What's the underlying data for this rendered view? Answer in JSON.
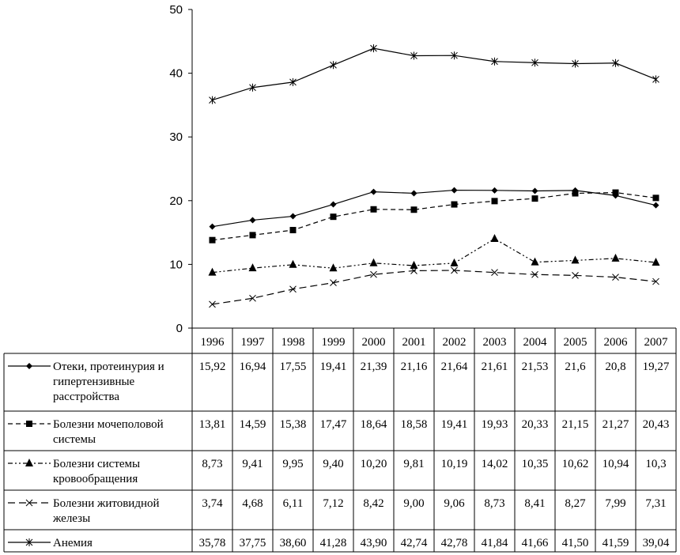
{
  "chart_data": {
    "type": "line",
    "categories": [
      "1996",
      "1997",
      "1998",
      "1999",
      "2000",
      "2001",
      "2002",
      "2003",
      "2004",
      "2005",
      "2006",
      "2007"
    ],
    "ylim": [
      0,
      50
    ],
    "yticks": [
      "0",
      "10",
      "20",
      "30",
      "40",
      "50"
    ],
    "grid": false,
    "legend": "data-table-bottom",
    "series": [
      {
        "name": "Отеки, протеинурия и гипертензивные расстройства",
        "name_lines": [
          "Отеки, протеинурия и",
          "гипертензивные",
          "расстройства"
        ],
        "marker": "diamond",
        "line_style": "solid",
        "values": [
          15.92,
          16.94,
          17.55,
          19.41,
          21.39,
          21.16,
          21.64,
          21.61,
          21.53,
          21.6,
          20.8,
          19.27
        ],
        "labels": [
          "15,92",
          "16,94",
          "17,55",
          "19,41",
          "21,39",
          "21,16",
          "21,64",
          "21,61",
          "21,53",
          "21,6",
          "20,8",
          "19,27"
        ]
      },
      {
        "name": "Болезни мочеполовой системы",
        "name_lines": [
          "Болезни мочеполовой",
          "системы"
        ],
        "marker": "square",
        "line_style": "dashed",
        "values": [
          13.81,
          14.59,
          15.38,
          17.47,
          18.64,
          18.58,
          19.41,
          19.93,
          20.33,
          21.15,
          21.27,
          20.43
        ],
        "labels": [
          "13,81",
          "14,59",
          "15,38",
          "17,47",
          "18,64",
          "18,58",
          "19,41",
          "19,93",
          "20,33",
          "21,15",
          "21,27",
          "20,43"
        ]
      },
      {
        "name": "Болезни системы кровообращения",
        "name_lines": [
          "Болезни системы",
          "кровообращения"
        ],
        "marker": "triangle",
        "line_style": "dash-dot-dot",
        "values": [
          8.73,
          9.41,
          9.95,
          9.4,
          10.2,
          9.81,
          10.19,
          14.02,
          10.35,
          10.62,
          10.94,
          10.3
        ],
        "labels": [
          "8,73",
          "9,41",
          "9,95",
          "9,40",
          "10,20",
          "9,81",
          "10,19",
          "14,02",
          "10,35",
          "10,62",
          "10,94",
          "10,3"
        ]
      },
      {
        "name": "Болезни житовидной железы",
        "name_lines": [
          "Болезни житовидной",
          "железы"
        ],
        "marker": "x",
        "line_style": "long-dash",
        "values": [
          3.74,
          4.68,
          6.11,
          7.12,
          8.42,
          9.0,
          9.06,
          8.73,
          8.41,
          8.27,
          7.99,
          7.31
        ],
        "labels": [
          "3,74",
          "4,68",
          "6,11",
          "7,12",
          "8,42",
          "9,00",
          "9,06",
          "8,73",
          "8,41",
          "8,27",
          "7,99",
          "7,31"
        ]
      },
      {
        "name": "Анемия",
        "name_lines": [
          "Анемия"
        ],
        "marker": "star",
        "line_style": "solid",
        "values": [
          35.78,
          37.75,
          38.6,
          41.28,
          43.9,
          42.74,
          42.78,
          41.84,
          41.66,
          41.5,
          41.59,
          39.04
        ],
        "labels": [
          "35,78",
          "37,75",
          "38,60",
          "41,28",
          "43,90",
          "42,74",
          "42,78",
          "41,84",
          "41,66",
          "41,50",
          "41,59",
          "39,04"
        ]
      }
    ]
  }
}
